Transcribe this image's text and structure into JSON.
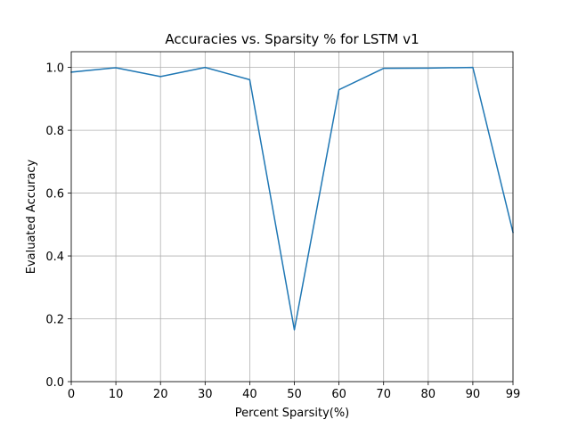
{
  "chart_data": {
    "type": "line",
    "title": "Accuracies vs. Sparsity % for LSTM v1",
    "xlabel": "Percent Sparsity(%)",
    "ylabel": "Evaluated Accuracy",
    "categories": [
      "0",
      "10",
      "20",
      "30",
      "40",
      "50",
      "60",
      "70",
      "80",
      "90",
      "99"
    ],
    "x": [
      0,
      10,
      20,
      30,
      40,
      50,
      60,
      70,
      80,
      90,
      99
    ],
    "series": [
      {
        "values": [
          0.985,
          0.999,
          0.971,
          1.0,
          0.961,
          0.165,
          0.929,
          0.997,
          0.998,
          1.0,
          0.475
        ],
        "color": "#1f77b4"
      }
    ],
    "xlim": [
      0,
      99
    ],
    "ylim": [
      0,
      1.05
    ],
    "yticks": [
      0.0,
      0.2,
      0.4,
      0.6,
      0.8,
      1.0
    ],
    "ytick_labels": [
      "0.0",
      "0.2",
      "0.4",
      "0.6",
      "0.8",
      "1.0"
    ],
    "grid": true,
    "legend": "none"
  }
}
